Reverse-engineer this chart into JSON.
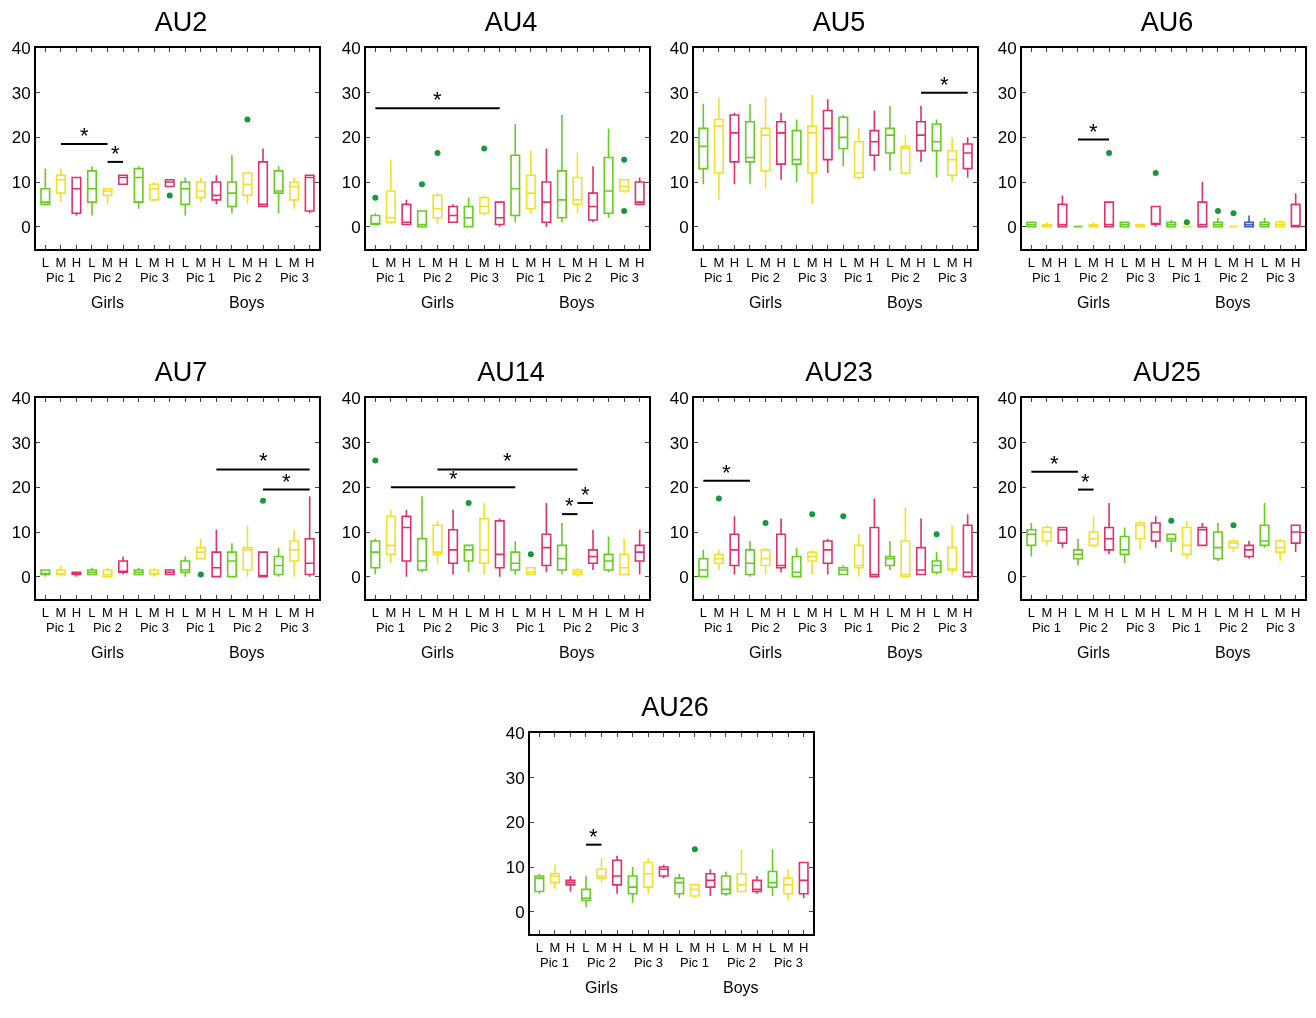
{
  "chart_data": [
    {
      "type": "box",
      "title": "AU2",
      "categories": [
        "L",
        "M",
        "H",
        "L",
        "M",
        "H",
        "L",
        "M",
        "H",
        "L",
        "M",
        "H",
        "L",
        "M",
        "H",
        "L",
        "M",
        "H"
      ],
      "ylim": [
        -5,
        40
      ],
      "yticks": [
        0,
        10,
        20,
        30,
        40
      ],
      "annotations": [
        "Pic 1",
        "Pic 2",
        "Pic 3",
        "Pic 1",
        "Pic 2",
        "Pic 3",
        "Girls",
        "Boys",
        "*",
        "*"
      ],
      "series": [
        {
          "color": "#1a9641",
          "colors": [
            "#66cc22",
            "#f2e02a",
            "#e0306a",
            "#66cc22",
            "#f2e02a",
            "#e0306a",
            "#66cc22",
            "#f2e02a",
            "#e0306a",
            "#66cc22",
            "#f2e02a",
            "#e0306a",
            "#66cc22",
            "#f2e02a",
            "#e0306a",
            "#66cc22",
            "#f2e02a",
            "#e0306a"
          ],
          "boxes": [
            {
              "low": 5,
              "q1": 5,
              "median": 5.5,
              "q3": 8.5,
              "high": 13
            },
            {
              "low": 5.5,
              "q1": 7.5,
              "median": 10.5,
              "q3": 11.5,
              "high": 13
            },
            {
              "low": 2.5,
              "q1": 3,
              "median": 8.5,
              "q3": 11,
              "high": 11
            },
            {
              "low": 2.5,
              "q1": 5.5,
              "median": 8.5,
              "q3": 12.5,
              "high": 13.5
            },
            {
              "low": 5,
              "q1": 7,
              "median": 8,
              "q3": 8.5,
              "high": 8.5
            },
            {
              "low": 9.5,
              "q1": 9.5,
              "median": 11,
              "q3": 11.5,
              "high": 11.5
            },
            {
              "low": 4,
              "q1": 5.5,
              "median": 11,
              "q3": 13,
              "high": 13.5
            },
            {
              "low": 5.5,
              "q1": 6,
              "median": 8.5,
              "q3": 9.5,
              "high": 10
            },
            {
              "low": 9,
              "q1": 9,
              "median": 10,
              "q3": 10.5,
              "high": 10.5,
              "outliers": [
                7
              ]
            },
            {
              "low": 2.5,
              "q1": 5,
              "median": 8.5,
              "q3": 10,
              "high": 11
            },
            {
              "low": 5.5,
              "q1": 6.5,
              "median": 8,
              "q3": 10,
              "high": 11
            },
            {
              "low": 5,
              "q1": 6,
              "median": 7,
              "q3": 10,
              "high": 11.5
            },
            {
              "low": 3,
              "q1": 4.5,
              "median": 7.5,
              "q3": 10,
              "high": 16
            },
            {
              "low": 5,
              "q1": 7,
              "median": 9.5,
              "q3": 12,
              "high": 12,
              "outliers": [
                24
              ]
            },
            {
              "low": 4.5,
              "q1": 4.5,
              "median": 5,
              "q3": 14.5,
              "high": 17.5
            },
            {
              "low": 3,
              "q1": 7.5,
              "median": 8,
              "q3": 12.5,
              "high": 13.5
            },
            {
              "low": 4,
              "q1": 6,
              "median": 9,
              "q3": 10,
              "high": 11
            },
            {
              "low": 3,
              "q1": 3.5,
              "median": 11,
              "q3": 11.5,
              "high": 11.5
            }
          ]
        }
      ]
    },
    {
      "type": "box",
      "title": "AU4",
      "categories": [
        "L",
        "M",
        "H",
        "L",
        "M",
        "H",
        "L",
        "M",
        "H",
        "L",
        "M",
        "H",
        "L",
        "M",
        "H",
        "L",
        "M",
        "H"
      ],
      "ylim": [
        -5,
        40
      ],
      "yticks": [
        0,
        10,
        20,
        30,
        40
      ],
      "annotations": [
        "Pic 1",
        "Pic 2",
        "Pic 3",
        "Pic 1",
        "Pic 2",
        "Pic 3",
        "Girls",
        "Boys",
        "*"
      ],
      "series": [
        {
          "color": "#1a9641",
          "colors": [
            "#66cc22",
            "#f2e02a",
            "#e0306a",
            "#66cc22",
            "#f2e02a",
            "#e0306a",
            "#66cc22",
            "#f2e02a",
            "#e0306a",
            "#66cc22",
            "#f2e02a",
            "#e0306a",
            "#66cc22",
            "#f2e02a",
            "#e0306a",
            "#66cc22",
            "#f2e02a",
            "#e0306a"
          ],
          "boxes": [
            {
              "low": 0.5,
              "q1": 0.5,
              "median": 0.5,
              "q3": 2.5,
              "high": 3,
              "outliers": [
                6.5
              ]
            },
            {
              "low": 0.5,
              "q1": 1,
              "median": 2,
              "q3": 8,
              "high": 15
            },
            {
              "low": 0.5,
              "q1": 0.5,
              "median": 1,
              "q3": 5,
              "high": 6
            },
            {
              "low": 0,
              "q1": 0,
              "median": 0.5,
              "q3": 3.5,
              "high": 3.5,
              "outliers": [
                9.5
              ]
            },
            {
              "low": 0.5,
              "q1": 2,
              "median": 4,
              "q3": 7,
              "high": 7.5,
              "outliers": [
                16.5
              ]
            },
            {
              "low": 1,
              "q1": 1,
              "median": 2.5,
              "q3": 4.5,
              "high": 5
            },
            {
              "low": 0,
              "q1": 0,
              "median": 2,
              "q3": 4.5,
              "high": 6.5
            },
            {
              "low": 2.5,
              "q1": 3,
              "median": 4.5,
              "q3": 6.5,
              "high": 7,
              "outliers": [
                17.5
              ]
            },
            {
              "low": 0,
              "q1": 0.5,
              "median": 2,
              "q3": 5.5,
              "high": 5.5
            },
            {
              "low": 1,
              "q1": 2.5,
              "median": 8.5,
              "q3": 16,
              "high": 23
            },
            {
              "low": 3,
              "q1": 4,
              "median": 7.5,
              "q3": 11.5,
              "high": 17
            },
            {
              "low": 0,
              "q1": 1,
              "median": 5.5,
              "q3": 10,
              "high": 17.5
            },
            {
              "low": 1,
              "q1": 2,
              "median": 6,
              "q3": 12.5,
              "high": 25
            },
            {
              "low": 3,
              "q1": 5,
              "median": 6,
              "q3": 11,
              "high": 16.5
            },
            {
              "low": 1,
              "q1": 1.5,
              "median": 4.5,
              "q3": 7.5,
              "high": 13.5
            },
            {
              "low": 2,
              "q1": 3,
              "median": 8,
              "q3": 15.5,
              "high": 22
            },
            {
              "low": 7.5,
              "q1": 8,
              "median": 9,
              "q3": 10.5,
              "high": 10.5,
              "outliers": [
                15,
                3.5
              ]
            },
            {
              "low": 5,
              "q1": 5,
              "median": 5.5,
              "q3": 10,
              "high": 11
            }
          ]
        }
      ]
    },
    {
      "type": "box",
      "title": "AU5",
      "categories": [
        "L",
        "M",
        "H",
        "L",
        "M",
        "H",
        "L",
        "M",
        "H",
        "L",
        "M",
        "H",
        "L",
        "M",
        "H",
        "L",
        "M",
        "H"
      ],
      "ylim": [
        -5,
        40
      ],
      "yticks": [
        0,
        10,
        20,
        30,
        40
      ],
      "annotations": [
        "Pic 1",
        "Pic 2",
        "Pic 3",
        "Pic 1",
        "Pic 2",
        "Pic 3",
        "Girls",
        "Boys",
        "*"
      ],
      "series": [
        {
          "colors": [
            "#66cc22",
            "#f2e02a",
            "#e0306a",
            "#66cc22",
            "#f2e02a",
            "#e0306a",
            "#66cc22",
            "#f2e02a",
            "#e0306a",
            "#66cc22",
            "#f2e02a",
            "#e0306a",
            "#66cc22",
            "#f2e02a",
            "#e0306a",
            "#66cc22",
            "#f2e02a",
            "#e0306a"
          ],
          "boxes": [
            {
              "low": 9.5,
              "q1": 13,
              "median": 18,
              "q3": 22,
              "high": 27.5
            },
            {
              "low": 6,
              "q1": 12,
              "median": 22.5,
              "q3": 24,
              "high": 29
            },
            {
              "low": 9.5,
              "q1": 14.5,
              "median": 21,
              "q3": 25,
              "high": 25.5
            },
            {
              "low": 9.5,
              "q1": 14.5,
              "median": 15.5,
              "q3": 23.5,
              "high": 27.5
            },
            {
              "low": 8.5,
              "q1": 12.5,
              "median": 20.5,
              "q3": 22,
              "high": 29
            },
            {
              "low": 10.5,
              "q1": 14,
              "median": 21,
              "q3": 23.5,
              "high": 25.5
            },
            {
              "low": 10,
              "q1": 14,
              "median": 15,
              "q3": 21.5,
              "high": 24
            },
            {
              "low": 5,
              "q1": 12,
              "median": 21,
              "q3": 22.5,
              "high": 29.5
            },
            {
              "low": 12,
              "q1": 15,
              "median": 22,
              "q3": 26,
              "high": 28.5
            },
            {
              "low": 13.5,
              "q1": 17.5,
              "median": 20,
              "q3": 24.5,
              "high": 25
            },
            {
              "low": 10.5,
              "q1": 11,
              "median": 12,
              "q3": 19,
              "high": 22
            },
            {
              "low": 12.5,
              "q1": 16,
              "median": 19,
              "q3": 21.5,
              "high": 26
            },
            {
              "low": 12.5,
              "q1": 16.5,
              "median": 20.5,
              "q3": 22,
              "high": 27
            },
            {
              "low": 11.5,
              "q1": 12,
              "median": 17.5,
              "q3": 18,
              "high": 20.5
            },
            {
              "low": 14.5,
              "q1": 17,
              "median": 20.5,
              "q3": 23.5,
              "high": 27
            },
            {
              "low": 11,
              "q1": 17,
              "median": 19,
              "q3": 23,
              "high": 24
            },
            {
              "low": 10,
              "q1": 11.5,
              "median": 15,
              "q3": 17,
              "high": 20
            },
            {
              "low": 11,
              "q1": 13,
              "median": 16.5,
              "q3": 18.5,
              "high": 20
            }
          ]
        }
      ]
    },
    {
      "type": "box",
      "title": "AU6",
      "categories": [
        "L",
        "M",
        "H",
        "L",
        "M",
        "H",
        "L",
        "M",
        "H",
        "L",
        "M",
        "H",
        "L",
        "M",
        "H",
        "L",
        "M",
        "H"
      ],
      "ylim": [
        -5,
        40
      ],
      "yticks": [
        0,
        10,
        20,
        30,
        40
      ],
      "annotations": [
        "Pic 1",
        "Pic 2",
        "Pic 3",
        "Pic 1",
        "Pic 2",
        "Pic 3",
        "Girls",
        "Boys",
        "*"
      ],
      "series": [
        {
          "color": "#1a9641",
          "colors": [
            "#66cc22",
            "#f2e02a",
            "#e0306a",
            "#66cc22",
            "#f2e02a",
            "#e0306a",
            "#66cc22",
            "#f2e02a",
            "#e0306a",
            "#66cc22",
            "#f2e02a",
            "#e0306a",
            "#66cc22",
            "#f2e02a",
            "#3b5fc0",
            "#66cc22",
            "#f2e02a",
            "#e0306a"
          ],
          "boxes": [
            {
              "low": 0,
              "q1": 0,
              "median": 0.5,
              "q3": 1,
              "high": 1
            },
            {
              "low": 0,
              "q1": 0,
              "median": 0.5,
              "q3": 0.5,
              "high": 1
            },
            {
              "low": 0,
              "q1": 0,
              "median": 0.5,
              "q3": 5,
              "high": 7
            },
            {
              "low": 0,
              "q1": 0,
              "median": 0,
              "q3": 0,
              "high": 0
            },
            {
              "low": 0,
              "q1": 0,
              "median": 0.5,
              "q3": 0.5,
              "high": 1
            },
            {
              "low": 0,
              "q1": 0,
              "median": 0.5,
              "q3": 5.5,
              "high": 5.5,
              "outliers": [
                16.5
              ]
            },
            {
              "low": 0,
              "q1": 0,
              "median": 0.5,
              "q3": 1,
              "high": 1
            },
            {
              "low": 0,
              "q1": 0,
              "median": 0.5,
              "q3": 0.5,
              "high": 0.5
            },
            {
              "low": 0,
              "q1": 0.5,
              "median": 0.5,
              "q3": 4.5,
              "high": 4.5,
              "outliers": [
                12
              ]
            },
            {
              "low": 0,
              "q1": 0,
              "median": 0.5,
              "q3": 1,
              "high": 1.5
            },
            {
              "low": 0,
              "q1": 0,
              "median": 0,
              "q3": 0,
              "high": 0,
              "outliers": [
                1
              ]
            },
            {
              "low": 0,
              "q1": 0,
              "median": 0.5,
              "q3": 5.5,
              "high": 10
            },
            {
              "low": 0,
              "q1": 0,
              "median": 0.5,
              "q3": 1,
              "high": 2,
              "outliers": [
                3.5
              ]
            },
            {
              "low": 0,
              "q1": 0,
              "median": 0,
              "q3": 0,
              "high": 0,
              "outliers": [
                3
              ]
            },
            {
              "low": 0,
              "q1": 0,
              "median": 0.5,
              "q3": 1,
              "high": 2.5
            },
            {
              "low": 0,
              "q1": 0,
              "median": 0.5,
              "q3": 1,
              "high": 2
            },
            {
              "low": 0,
              "q1": 0,
              "median": 0.5,
              "q3": 1,
              "high": 1.5
            },
            {
              "low": 0,
              "q1": 0,
              "median": 0,
              "q3": 5,
              "high": 7.5
            }
          ]
        }
      ]
    },
    {
      "type": "box",
      "title": "AU7",
      "categories": [
        "L",
        "M",
        "H",
        "L",
        "M",
        "H",
        "L",
        "M",
        "H",
        "L",
        "M",
        "H",
        "L",
        "M",
        "H",
        "L",
        "M",
        "H"
      ],
      "ylim": [
        -5,
        40
      ],
      "yticks": [
        0,
        10,
        20,
        30,
        40
      ],
      "annotations": [
        "Pic 1",
        "Pic 2",
        "Pic 3",
        "Pic 1",
        "Pic 2",
        "Pic 3",
        "Girls",
        "Boys",
        "*",
        "*"
      ],
      "series": [
        {
          "color": "#1a9641",
          "colors": [
            "#66cc22",
            "#f2e02a",
            "#e0306a",
            "#66cc22",
            "#f2e02a",
            "#e0306a",
            "#66cc22",
            "#f2e02a",
            "#e0306a",
            "#66cc22",
            "#f2e02a",
            "#e0306a",
            "#66cc22",
            "#f2e02a",
            "#e0306a",
            "#66cc22",
            "#f2e02a",
            "#e0306a"
          ],
          "boxes": [
            {
              "low": 0,
              "q1": 0.5,
              "median": 0.5,
              "q3": 1.5,
              "high": 1.5
            },
            {
              "low": 0,
              "q1": 0.5,
              "median": 0.5,
              "q3": 1.5,
              "high": 2.5
            },
            {
              "low": 0,
              "q1": 0.5,
              "median": 0.5,
              "q3": 1,
              "high": 1
            },
            {
              "low": 0.5,
              "q1": 0.5,
              "median": 1,
              "q3": 1.5,
              "high": 2
            },
            {
              "low": 0,
              "q1": 0,
              "median": 0.5,
              "q3": 1.5,
              "high": 2
            },
            {
              "low": 0.5,
              "q1": 1,
              "median": 1,
              "q3": 3.5,
              "high": 4.5
            },
            {
              "low": 0.5,
              "q1": 0.5,
              "median": 1,
              "q3": 1.5,
              "high": 2
            },
            {
              "low": 0,
              "q1": 0.5,
              "median": 0.5,
              "q3": 1.5,
              "high": 2
            },
            {
              "low": 0.5,
              "q1": 0.5,
              "median": 1,
              "q3": 1.5,
              "high": 1.5
            },
            {
              "low": 0,
              "q1": 1,
              "median": 1.5,
              "q3": 3.5,
              "high": 4.5
            },
            {
              "low": 4,
              "q1": 4,
              "median": 5.5,
              "q3": 6.5,
              "high": 8.5,
              "outliers": [
                0.5
              ]
            },
            {
              "low": 0,
              "q1": 0,
              "median": 2,
              "q3": 5.5,
              "high": 10.5
            },
            {
              "low": 0,
              "q1": 0,
              "median": 3.5,
              "q3": 5.5,
              "high": 7.5
            },
            {
              "low": 0,
              "q1": 1.5,
              "median": 6,
              "q3": 6.5,
              "high": 11.5
            },
            {
              "low": 0,
              "q1": 0,
              "median": 0,
              "q3": 5.5,
              "high": 5.5,
              "outliers": [
                17
              ]
            },
            {
              "low": 0,
              "q1": 0.5,
              "median": 2.5,
              "q3": 4.5,
              "high": 6.5
            },
            {
              "low": 0,
              "q1": 3.5,
              "median": 6,
              "q3": 8,
              "high": 10.5
            },
            {
              "low": 0,
              "q1": 0.5,
              "median": 3,
              "q3": 8.5,
              "high": 18
            }
          ]
        }
      ]
    },
    {
      "type": "box",
      "title": "AU14",
      "categories": [
        "L",
        "M",
        "H",
        "L",
        "M",
        "H",
        "L",
        "M",
        "H",
        "L",
        "M",
        "H",
        "L",
        "M",
        "H",
        "L",
        "M",
        "H"
      ],
      "ylim": [
        -5,
        40
      ],
      "yticks": [
        0,
        10,
        20,
        30,
        40
      ],
      "annotations": [
        "Pic 1",
        "Pic 2",
        "Pic 3",
        "Pic 1",
        "Pic 2",
        "Pic 3",
        "Girls",
        "Boys",
        "*",
        "*",
        "*",
        "*"
      ],
      "series": [
        {
          "color": "#1a9641",
          "colors": [
            "#66cc22",
            "#f2e02a",
            "#e0306a",
            "#66cc22",
            "#f2e02a",
            "#e0306a",
            "#66cc22",
            "#f2e02a",
            "#e0306a",
            "#66cc22",
            "#f2e02a",
            "#e0306a",
            "#66cc22",
            "#f2e02a",
            "#e0306a",
            "#66cc22",
            "#f2e02a",
            "#e0306a"
          ],
          "boxes": [
            {
              "low": 0.5,
              "q1": 2,
              "median": 5.5,
              "q3": 8,
              "high": 8.5,
              "outliers": [
                26
              ]
            },
            {
              "low": 3,
              "q1": 5,
              "median": 7,
              "q3": 13.5,
              "high": 15
            },
            {
              "low": 0,
              "q1": 3.5,
              "median": 11,
              "q3": 13.5,
              "high": 15
            },
            {
              "low": 1,
              "q1": 1.5,
              "median": 3.5,
              "q3": 8.5,
              "high": 18
            },
            {
              "low": 3,
              "q1": 5,
              "median": 5.5,
              "q3": 11.5,
              "high": 12.5
            },
            {
              "low": 0.5,
              "q1": 3,
              "median": 6,
              "q3": 10.5,
              "high": 15
            },
            {
              "low": 1,
              "q1": 3.5,
              "median": 6,
              "q3": 7,
              "high": 7,
              "outliers": [
                16.5
              ]
            },
            {
              "low": 0.5,
              "q1": 3,
              "median": 6,
              "q3": 13,
              "high": 16.5
            },
            {
              "low": 0,
              "q1": 2,
              "median": 5,
              "q3": 12.5,
              "high": 13
            },
            {
              "low": 0.5,
              "q1": 1.5,
              "median": 3,
              "q3": 5.5,
              "high": 8
            },
            {
              "low": 0.5,
              "q1": 0.5,
              "median": 1,
              "q3": 2,
              "high": 2,
              "outliers": [
                5
              ]
            },
            {
              "low": 1,
              "q1": 2.5,
              "median": 6.5,
              "q3": 9.5,
              "high": 16.5
            },
            {
              "low": 0.5,
              "q1": 1.5,
              "median": 4,
              "q3": 7,
              "high": 12
            },
            {
              "low": 0,
              "q1": 0.5,
              "median": 1,
              "q3": 1.5,
              "high": 2
            },
            {
              "low": 1.5,
              "q1": 3,
              "median": 4.5,
              "q3": 6,
              "high": 10.5
            },
            {
              "low": 1,
              "q1": 1.5,
              "median": 3.5,
              "q3": 5,
              "high": 9
            },
            {
              "low": 0.5,
              "q1": 0.5,
              "median": 2,
              "q3": 5,
              "high": 8.5
            },
            {
              "low": 0.5,
              "q1": 3.5,
              "median": 5.5,
              "q3": 7,
              "high": 10.5
            }
          ]
        }
      ]
    },
    {
      "type": "box",
      "title": "AU23",
      "categories": [
        "L",
        "M",
        "H",
        "L",
        "M",
        "H",
        "L",
        "M",
        "H",
        "L",
        "M",
        "H",
        "L",
        "M",
        "H",
        "L",
        "M",
        "H"
      ],
      "ylim": [
        -5,
        40
      ],
      "yticks": [
        0,
        10,
        20,
        30,
        40
      ],
      "annotations": [
        "Pic 1",
        "Pic 2",
        "Pic 3",
        "Pic 1",
        "Pic 2",
        "Pic 3",
        "Girls",
        "Boys",
        "*"
      ],
      "series": [
        {
          "color": "#1a9641",
          "colors": [
            "#66cc22",
            "#f2e02a",
            "#e0306a",
            "#66cc22",
            "#f2e02a",
            "#e0306a",
            "#66cc22",
            "#f2e02a",
            "#e0306a",
            "#66cc22",
            "#f2e02a",
            "#e0306a",
            "#66cc22",
            "#f2e02a",
            "#e0306a",
            "#66cc22",
            "#f2e02a",
            "#e0306a"
          ],
          "boxes": [
            {
              "low": 0,
              "q1": 0,
              "median": 1.5,
              "q3": 4,
              "high": 6
            },
            {
              "low": 1.5,
              "q1": 3,
              "median": 4,
              "q3": 5,
              "high": 6,
              "outliers": [
                17.5
              ]
            },
            {
              "low": 0.5,
              "q1": 2.5,
              "median": 6,
              "q3": 9.5,
              "high": 13.5
            },
            {
              "low": 0,
              "q1": 0.5,
              "median": 3,
              "q3": 6,
              "high": 8
            },
            {
              "low": 0.5,
              "q1": 2.5,
              "median": 4,
              "q3": 6,
              "high": 6.5,
              "outliers": [
                12
              ]
            },
            {
              "low": 1,
              "q1": 2,
              "median": 2.5,
              "q3": 9.5,
              "high": 13
            },
            {
              "low": 0,
              "q1": 0,
              "median": 1,
              "q3": 4.5,
              "high": 6.5
            },
            {
              "low": 0.5,
              "q1": 3.5,
              "median": 4.5,
              "q3": 5.5,
              "high": 6,
              "outliers": [
                14
              ]
            },
            {
              "low": 0.5,
              "q1": 3,
              "median": 6,
              "q3": 8,
              "high": 8.5
            },
            {
              "low": 0.5,
              "q1": 0.5,
              "median": 1.5,
              "q3": 2,
              "high": 2.5,
              "outliers": [
                13.5
              ]
            },
            {
              "low": 0,
              "q1": 2,
              "median": 2.5,
              "q3": 7,
              "high": 9.5
            },
            {
              "low": 0,
              "q1": 0,
              "median": 0.5,
              "q3": 11,
              "high": 17.5
            },
            {
              "low": 1.5,
              "q1": 2.5,
              "median": 4,
              "q3": 4.5,
              "high": 8
            },
            {
              "low": 0,
              "q1": 0,
              "median": 0.5,
              "q3": 8,
              "high": 15.5
            },
            {
              "low": 0.5,
              "q1": 0.5,
              "median": 1.5,
              "q3": 6.5,
              "high": 13
            },
            {
              "low": 0.5,
              "q1": 1,
              "median": 2.5,
              "q3": 3.5,
              "high": 5.5,
              "outliers": [
                9.5
              ]
            },
            {
              "low": 0.5,
              "q1": 1.5,
              "median": 1.5,
              "q3": 6.5,
              "high": 11.5
            },
            {
              "low": 0,
              "q1": 0,
              "median": 1,
              "q3": 11.5,
              "high": 14
            }
          ]
        }
      ]
    },
    {
      "type": "box",
      "title": "AU25",
      "categories": [
        "L",
        "M",
        "H",
        "L",
        "M",
        "H",
        "L",
        "M",
        "H",
        "L",
        "M",
        "H",
        "L",
        "M",
        "H",
        "L",
        "M",
        "H"
      ],
      "ylim": [
        -5,
        40
      ],
      "yticks": [
        0,
        10,
        20,
        30,
        40
      ],
      "annotations": [
        "Pic 1",
        "Pic 2",
        "Pic 3",
        "Pic 1",
        "Pic 2",
        "Pic 3",
        "Girls",
        "Boys",
        "*",
        "*"
      ],
      "series": [
        {
          "color": "#1a9641",
          "colors": [
            "#66cc22",
            "#f2e02a",
            "#e0306a",
            "#66cc22",
            "#f2e02a",
            "#e0306a",
            "#66cc22",
            "#f2e02a",
            "#e0306a",
            "#66cc22",
            "#f2e02a",
            "#e0306a",
            "#66cc22",
            "#f2e02a",
            "#e0306a",
            "#66cc22",
            "#f2e02a",
            "#e0306a"
          ],
          "boxes": [
            {
              "low": 4.5,
              "q1": 7,
              "median": 9.5,
              "q3": 10.5,
              "high": 12
            },
            {
              "low": 7,
              "q1": 8,
              "median": 10,
              "q3": 11,
              "high": 11.5
            },
            {
              "low": 6.5,
              "q1": 7.5,
              "median": 10.5,
              "q3": 11,
              "high": 11
            },
            {
              "low": 2.5,
              "q1": 4,
              "median": 5,
              "q3": 6,
              "high": 8.5
            },
            {
              "low": 6.5,
              "q1": 7,
              "median": 8.5,
              "q3": 10,
              "high": 13.5
            },
            {
              "low": 5,
              "q1": 6,
              "median": 8.5,
              "q3": 11,
              "high": 16.5
            },
            {
              "low": 3,
              "q1": 5,
              "median": 6,
              "q3": 9,
              "high": 11
            },
            {
              "low": 6,
              "q1": 8.5,
              "median": 11.5,
              "q3": 12,
              "high": 12.5
            },
            {
              "low": 6.5,
              "q1": 8,
              "median": 10,
              "q3": 12,
              "high": 13.5
            },
            {
              "low": 5.5,
              "q1": 8,
              "median": 8.5,
              "q3": 9.5,
              "high": 9.5,
              "outliers": [
                12.5
              ]
            },
            {
              "low": 4,
              "q1": 5,
              "median": 7,
              "q3": 11,
              "high": 12.5
            },
            {
              "low": 7,
              "q1": 7,
              "median": 10.5,
              "q3": 11,
              "high": 12
            },
            {
              "low": 3.5,
              "q1": 4,
              "median": 6.5,
              "q3": 10,
              "high": 12
            },
            {
              "low": 5.5,
              "q1": 6.5,
              "median": 7.5,
              "q3": 8,
              "high": 8.5,
              "outliers": [
                11.5
              ]
            },
            {
              "low": 4,
              "q1": 4.5,
              "median": 6,
              "q3": 7,
              "high": 8
            },
            {
              "low": 6.5,
              "q1": 7,
              "median": 8,
              "q3": 11.5,
              "high": 16.5
            },
            {
              "low": 3.5,
              "q1": 5.5,
              "median": 6.5,
              "q3": 8,
              "high": 8.5
            },
            {
              "low": 5.5,
              "q1": 7.5,
              "median": 10,
              "q3": 11.5,
              "high": 11.5
            }
          ]
        }
      ]
    },
    {
      "type": "box",
      "title": "AU26",
      "categories": [
        "L",
        "M",
        "H",
        "L",
        "M",
        "H",
        "L",
        "M",
        "H",
        "L",
        "M",
        "H",
        "L",
        "M",
        "H",
        "L",
        "M",
        "H"
      ],
      "ylim": [
        -5,
        40
      ],
      "yticks": [
        0,
        10,
        20,
        30,
        40
      ],
      "annotations": [
        "Pic 1",
        "Pic 2",
        "Pic 3",
        "Pic 1",
        "Pic 2",
        "Pic 3",
        "Girls",
        "Boys",
        "*"
      ],
      "series": [
        {
          "color": "#1a9641",
          "colors": [
            "#66cc22",
            "#f2e02a",
            "#e0306a",
            "#66cc22",
            "#f2e02a",
            "#e0306a",
            "#66cc22",
            "#f2e02a",
            "#e0306a",
            "#66cc22",
            "#f2e02a",
            "#e0306a",
            "#66cc22",
            "#f2e02a",
            "#e0306a",
            "#66cc22",
            "#f2e02a",
            "#e0306a"
          ],
          "boxes": [
            {
              "low": 4,
              "q1": 4.5,
              "median": 7.5,
              "q3": 8,
              "high": 8.5
            },
            {
              "low": 5,
              "q1": 6.5,
              "median": 8,
              "q3": 8.5,
              "high": 10.5
            },
            {
              "low": 4.5,
              "q1": 6,
              "median": 6.5,
              "q3": 7,
              "high": 8
            },
            {
              "low": 1,
              "q1": 2.5,
              "median": 3,
              "q3": 5,
              "high": 8
            },
            {
              "low": 6.5,
              "q1": 7.5,
              "median": 8,
              "q3": 9.5,
              "high": 12
            },
            {
              "low": 4,
              "q1": 6,
              "median": 8,
              "q3": 11.5,
              "high": 12.5
            },
            {
              "low": 2,
              "q1": 4,
              "median": 5.5,
              "q3": 8,
              "high": 10
            },
            {
              "low": 4,
              "q1": 5.5,
              "median": 8.5,
              "q3": 11,
              "high": 12
            },
            {
              "low": 7.5,
              "q1": 8,
              "median": 9.5,
              "q3": 10,
              "high": 10.5
            },
            {
              "low": 3,
              "q1": 4,
              "median": 6.5,
              "q3": 7.5,
              "high": 8.5
            },
            {
              "low": 3,
              "q1": 3.5,
              "median": 5,
              "q3": 6,
              "high": 6,
              "outliers": [
                14
              ]
            },
            {
              "low": 3.5,
              "q1": 5.5,
              "median": 7,
              "q3": 8.5,
              "high": 9.5
            },
            {
              "low": 3.5,
              "q1": 4,
              "median": 5,
              "q3": 8,
              "high": 9
            },
            {
              "low": 4.5,
              "q1": 4.5,
              "median": 6,
              "q3": 8.5,
              "high": 14
            },
            {
              "low": 4,
              "q1": 4.5,
              "median": 5,
              "q3": 7,
              "high": 8
            },
            {
              "low": 3.5,
              "q1": 5.5,
              "median": 6.5,
              "q3": 9,
              "high": 14
            },
            {
              "low": 2.5,
              "q1": 4,
              "median": 6,
              "q3": 7.5,
              "high": 9.5
            },
            {
              "low": 3,
              "q1": 4,
              "median": 7,
              "q3": 11,
              "high": 11
            }
          ]
        }
      ]
    }
  ]
}
